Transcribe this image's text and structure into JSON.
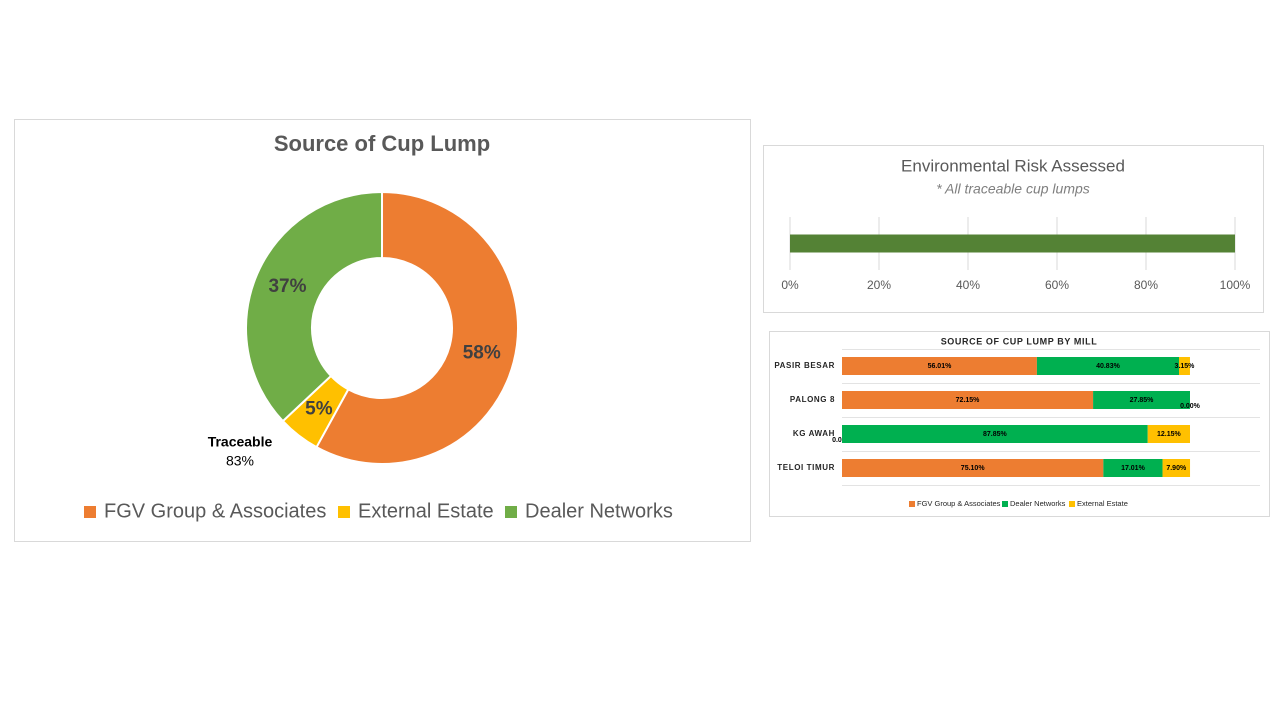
{
  "chart_data": [
    {
      "type": "doughnut",
      "title": "Source of Cup Lump",
      "categories": [
        "FGV Group & Associates",
        "External Estate",
        "Dealer Networks"
      ],
      "values": [
        58,
        5,
        37
      ],
      "value_labels": [
        "58%",
        "5%",
        "37%"
      ],
      "colors": [
        "#ED7D31",
        "#FFC000",
        "#70AD47"
      ],
      "annotations": [
        "Traceable",
        "83%"
      ],
      "legend": "bottom"
    },
    {
      "type": "bar",
      "orientation": "horizontal",
      "title": "Environmental Risk Assessed",
      "subtitle": "* All traceable cup lumps",
      "categories": [
        null
      ],
      "values": [
        100
      ],
      "color": "#548235",
      "xlim": [
        0,
        100
      ],
      "xticks": [
        {
          "value": 0,
          "label": "0%"
        },
        {
          "value": 20,
          "label": "20%"
        },
        {
          "value": 40,
          "label": "40%"
        },
        {
          "value": 60,
          "label": "60%"
        },
        {
          "value": 80,
          "label": "80%"
        },
        {
          "value": 100,
          "label": "100%"
        }
      ],
      "grid": true
    },
    {
      "type": "bar",
      "orientation": "horizontal",
      "stacked": true,
      "title": "SOURCE OF CUP LUMP BY MILL",
      "categories": [
        "PASIR BESAR",
        "PALONG 8",
        "KG AWAH",
        "TELOI TIMUR"
      ],
      "xlim": [
        0,
        100
      ],
      "series": [
        {
          "name": "FGV Group & Associates",
          "color": "#ED7D31",
          "values": [
            56.01,
            72.15,
            0,
            75.1
          ],
          "value_labels": [
            "56.01%",
            "72.15%",
            "0.00%",
            "75.10%"
          ]
        },
        {
          "name": "Dealer Networks",
          "color": "#00B050",
          "values": [
            40.83,
            27.85,
            87.85,
            17.01
          ],
          "value_labels": [
            "40.83%",
            "27.85%",
            "87.85%",
            "17.01%"
          ]
        },
        {
          "name": "External Estate",
          "color": "#FFC000",
          "values": [
            3.15,
            0,
            12.15,
            7.9
          ],
          "value_labels": [
            "3.15%",
            "0.00%",
            "12.15%",
            "7.90%"
          ]
        }
      ],
      "legend": "bottom"
    }
  ]
}
